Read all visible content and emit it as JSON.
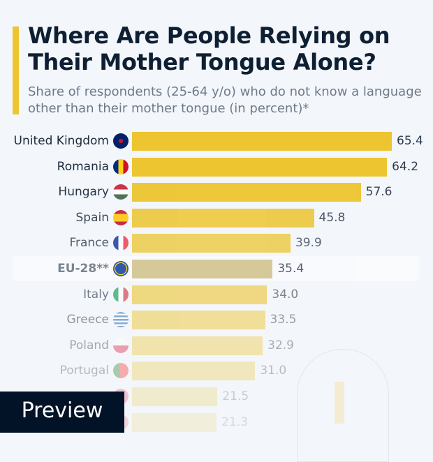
{
  "title": "Where Are People Relying on Their Mother Tongue Alone?",
  "subtitle": "Share of respondents (25-64 y/o) who do not know a language other than their mother tongue (in percent)*",
  "preview_label": "Preview",
  "colors": {
    "bar": "#ecc530",
    "highlight_bar": "#cfbf82",
    "accent": "#ecc530"
  },
  "chart_data": {
    "type": "bar",
    "orientation": "horizontal",
    "categories": [
      "United Kingdom",
      "Romania",
      "Hungary",
      "Spain",
      "France",
      "EU-28**",
      "Italy",
      "Greece",
      "Poland",
      "Portugal",
      "",
      ""
    ],
    "values": [
      65.4,
      64.2,
      57.6,
      45.8,
      39.9,
      35.4,
      34.0,
      33.5,
      32.9,
      31.0,
      21.5,
      21.3
    ],
    "value_labels": [
      "65.4",
      "64.2",
      "57.6",
      "45.8",
      "39.9",
      "35.4",
      "34.0",
      "33.5",
      "32.9",
      "31.0",
      "21.5",
      "21.3"
    ],
    "flags": [
      "uk-flag-icon",
      "romania-flag-icon",
      "hungary-flag-icon",
      "spain-flag-icon",
      "france-flag-icon",
      "eu-flag-icon",
      "italy-flag-icon",
      "greece-flag-icon",
      "poland-flag-icon",
      "portugal-flag-icon",
      "flag-icon",
      "flag-icon"
    ],
    "highlight": "EU-28**",
    "grid": false
  }
}
